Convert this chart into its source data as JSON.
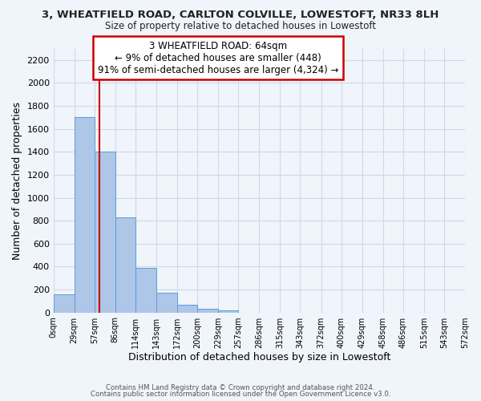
{
  "title_line1": "3, WHEATFIELD ROAD, CARLTON COLVILLE, LOWESTOFT, NR33 8LH",
  "title_line2": "Size of property relative to detached houses in Lowestoft",
  "xlabel": "Distribution of detached houses by size in Lowestoft",
  "ylabel": "Number of detached properties",
  "bin_edges": [
    0,
    29,
    57,
    86,
    114,
    143,
    172,
    200,
    229,
    257,
    286,
    315,
    343,
    372,
    400,
    429,
    458,
    486,
    515,
    543,
    572
  ],
  "bar_heights": [
    160,
    1700,
    1400,
    830,
    390,
    170,
    65,
    30,
    20,
    0,
    0,
    0,
    0,
    0,
    0,
    0,
    0,
    0,
    0,
    0
  ],
  "bar_color": "#aec6e8",
  "bar_edgecolor": "#5a9fd4",
  "vline_x": 64,
  "vline_color": "#cc0000",
  "ylim": [
    0,
    2300
  ],
  "yticks": [
    0,
    200,
    400,
    600,
    800,
    1000,
    1200,
    1400,
    1600,
    1800,
    2000,
    2200
  ],
  "annotation_title": "3 WHEATFIELD ROAD: 64sqm",
  "annotation_line1": "← 9% of detached houses are smaller (448)",
  "annotation_line2": "91% of semi-detached houses are larger (4,324) →",
  "annotation_box_color": "#ffffff",
  "annotation_box_edgecolor": "#cc0000",
  "grid_color": "#d0d8e8",
  "background_color": "#f0f4fb",
  "footer_line1": "Contains HM Land Registry data © Crown copyright and database right 2024.",
  "footer_line2": "Contains public sector information licensed under the Open Government Licence v3.0."
}
